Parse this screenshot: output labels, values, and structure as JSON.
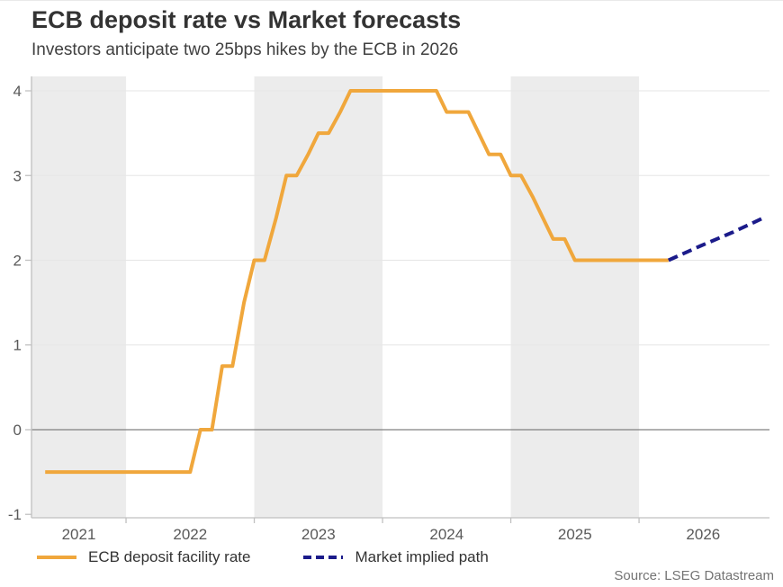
{
  "header": {
    "title": "ECB deposit rate vs Market forecasts",
    "subtitle": "Investors anticipate two 25bps hikes by the ECB in 2026"
  },
  "source": "Source: LSEG Datastream",
  "colors": {
    "actual_line": "#F0A73C",
    "forecast_line": "#1B1B8A",
    "year_band": "#ECECEC",
    "gridline": "#E6E6E6",
    "zero_line": "#808080",
    "axis_line": "#C0C0C0",
    "tick_label": "#595959"
  },
  "legend": [
    {
      "label": "ECB deposit facility rate",
      "color": "#F0A73C",
      "style": "solid"
    },
    {
      "label": "Market implied path",
      "color": "#1B1B8A",
      "style": "dashed"
    }
  ],
  "chart_data": {
    "type": "line",
    "title": "ECB deposit rate vs Market forecasts",
    "subtitle": "Investors anticipate two 25bps hikes by the ECB in 2026",
    "xlabel": "",
    "ylabel": "",
    "x_range": [
      2021.263,
      2027.017
    ],
    "y_range": [
      -1.04,
      4.17
    ],
    "x_tick_positions": [
      2022,
      2023,
      2024,
      2025,
      2026
    ],
    "x_year_labels": [
      "2021",
      "2022",
      "2023",
      "2024",
      "2025",
      "2026"
    ],
    "x_year_starts": [
      2021,
      2022,
      2023,
      2024,
      2025,
      2026
    ],
    "y_ticks": [
      -1,
      0,
      1,
      2,
      3,
      4
    ],
    "y_tick_labels": [
      "-1",
      "0",
      "1",
      "2",
      "3",
      "4"
    ],
    "shaded_years": [
      2021,
      2023,
      2025
    ],
    "grid": "horizontal-light, zero-line-dark, alternating-year-bands",
    "legend_position": "bottom-left",
    "series": [
      {
        "name": "ECB deposit facility rate",
        "color": "#F0A73C",
        "style": "solid",
        "points": [
          [
            2021.37,
            -0.5
          ],
          [
            2022.5,
            -0.5
          ],
          [
            2022.58,
            0.0
          ],
          [
            2022.67,
            0.0
          ],
          [
            2022.75,
            0.75
          ],
          [
            2022.83,
            0.75
          ],
          [
            2022.92,
            1.5
          ],
          [
            2023.0,
            2.0
          ],
          [
            2023.08,
            2.0
          ],
          [
            2023.17,
            2.5
          ],
          [
            2023.25,
            3.0
          ],
          [
            2023.33,
            3.0
          ],
          [
            2023.42,
            3.25
          ],
          [
            2023.5,
            3.5
          ],
          [
            2023.58,
            3.5
          ],
          [
            2023.67,
            3.75
          ],
          [
            2023.75,
            4.0
          ],
          [
            2024.42,
            4.0
          ],
          [
            2024.5,
            3.75
          ],
          [
            2024.67,
            3.75
          ],
          [
            2024.75,
            3.5
          ],
          [
            2024.83,
            3.25
          ],
          [
            2024.92,
            3.25
          ],
          [
            2025.0,
            3.0
          ],
          [
            2025.08,
            3.0
          ],
          [
            2025.17,
            2.75
          ],
          [
            2025.25,
            2.5
          ],
          [
            2025.33,
            2.25
          ],
          [
            2025.42,
            2.25
          ],
          [
            2025.5,
            2.0
          ],
          [
            2026.23,
            2.0
          ]
        ]
      },
      {
        "name": "Market implied path",
        "color": "#1B1B8A",
        "style": "dashed",
        "points": [
          [
            2026.23,
            2.0
          ],
          [
            2026.48,
            2.17
          ],
          [
            2026.73,
            2.33
          ],
          [
            2026.97,
            2.5
          ]
        ]
      }
    ]
  }
}
